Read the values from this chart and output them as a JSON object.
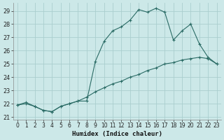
{
  "xlabel": "Humidex (Indice chaleur)",
  "bg_color": "#cce8e8",
  "line_color": "#2a6b65",
  "grid_color": "#aacece",
  "line1_y": [
    21.9,
    22.0,
    21.8,
    21.5,
    21.4,
    21.8,
    22.0,
    22.2,
    22.2,
    25.2,
    26.7,
    27.5,
    27.8,
    28.3,
    29.1,
    28.9,
    29.2,
    28.9,
    26.8,
    27.5,
    28.0,
    26.5,
    25.5,
    25.0
  ],
  "line2_y": [
    21.9,
    22.1,
    21.8,
    21.5,
    21.4,
    21.8,
    22.0,
    22.2,
    22.5,
    22.9,
    23.2,
    23.5,
    23.7,
    24.0,
    24.2,
    24.5,
    24.7,
    25.0,
    25.1,
    25.3,
    25.4,
    25.5,
    25.4,
    25.0
  ],
  "xlim": [
    -0.5,
    23.5
  ],
  "ylim": [
    20.8,
    29.6
  ],
  "yticks": [
    21,
    22,
    23,
    24,
    25,
    26,
    27,
    28,
    29
  ],
  "xticks": [
    0,
    1,
    2,
    3,
    4,
    5,
    6,
    7,
    8,
    9,
    10,
    11,
    12,
    13,
    14,
    15,
    16,
    17,
    18,
    19,
    20,
    21,
    22,
    23
  ],
  "xlabel_fontsize": 6.5,
  "tick_fontsize": 5.5,
  "xlabel_bold": true
}
